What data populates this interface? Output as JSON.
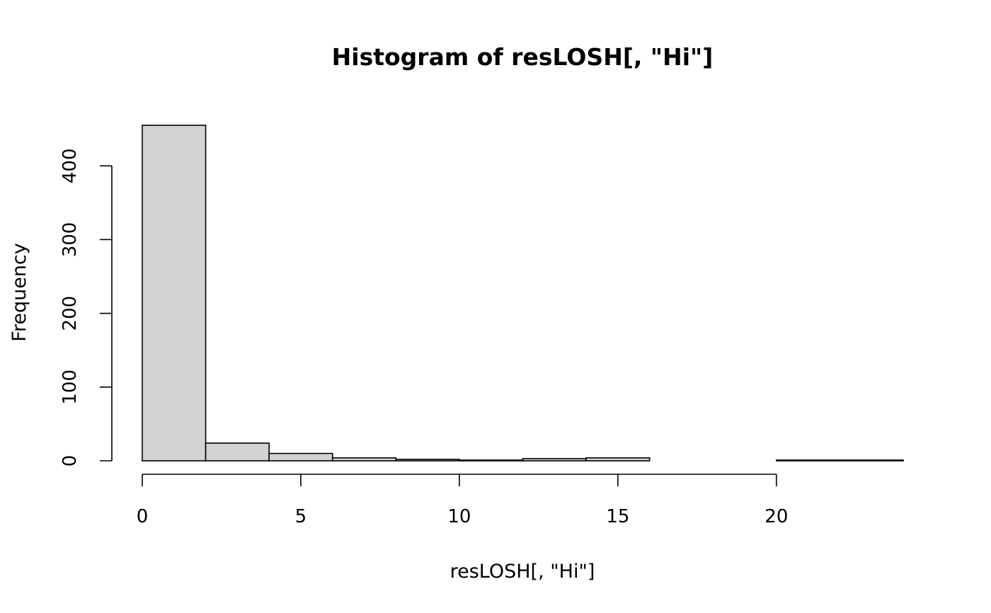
{
  "chart_data": {
    "type": "bar",
    "title": "Histogram of resLOSH[, \"Hi\"]",
    "xlabel": "resLOSH[, \"Hi\"]",
    "ylabel": "Frequency",
    "bins": [
      {
        "start": 0,
        "end": 2,
        "count": 455
      },
      {
        "start": 2,
        "end": 4,
        "count": 24
      },
      {
        "start": 4,
        "end": 6,
        "count": 10
      },
      {
        "start": 6,
        "end": 8,
        "count": 4
      },
      {
        "start": 8,
        "end": 10,
        "count": 2
      },
      {
        "start": 10,
        "end": 12,
        "count": 1
      },
      {
        "start": 12,
        "end": 14,
        "count": 3
      },
      {
        "start": 14,
        "end": 16,
        "count": 4
      },
      {
        "start": 16,
        "end": 18,
        "count": 0
      },
      {
        "start": 18,
        "end": 20,
        "count": 0
      },
      {
        "start": 20,
        "end": 22,
        "count": 1
      },
      {
        "start": 22,
        "end": 24,
        "count": 1
      }
    ],
    "xlim": [
      0,
      24
    ],
    "ylim": [
      0,
      455
    ],
    "x_ticks": [
      0,
      5,
      10,
      15,
      20
    ],
    "y_ticks": [
      0,
      100,
      200,
      300,
      400
    ],
    "bar_fill": "#d3d3d3",
    "bar_stroke": "#000000",
    "grid": false
  }
}
